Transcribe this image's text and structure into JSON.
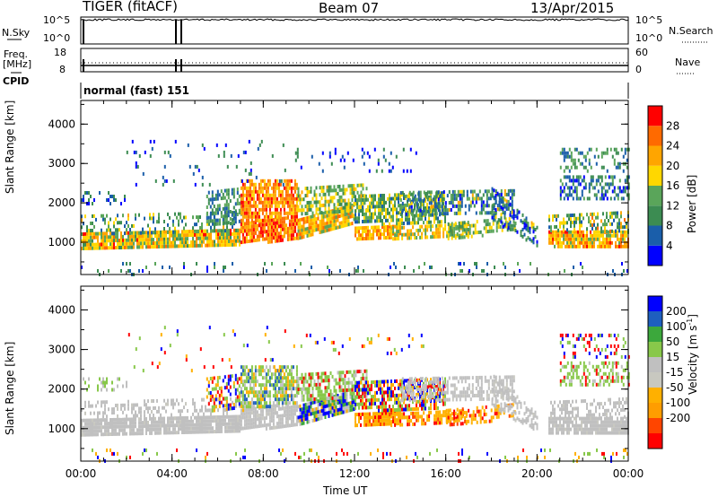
{
  "header": {
    "title": "TIGER (fitACF)",
    "beam": "Beam 07",
    "date": "13/Apr/2015"
  },
  "top_panels": {
    "nsky_label": "N.Sky",
    "nsky_ticks": [
      "10^5",
      "10^0"
    ],
    "nsearch_label": "N.Search",
    "nsearch_ticks": [
      "10^5",
      "10^0"
    ],
    "freq_label": "Freq.",
    "freq_unit": "[MHz]",
    "freq_ticks": [
      "18",
      "8"
    ],
    "nave_label": "Nave",
    "nave_ticks": [
      "60",
      "0"
    ],
    "cpid_label": "CPID",
    "cpid_text": "normal (fast) 151"
  },
  "colors": {
    "power": [
      "#0000ff",
      "#1a5eaa",
      "#3c8c52",
      "#5aa55a",
      "#ffd700",
      "#ffa500",
      "#ff6a00",
      "#ff0000"
    ],
    "velocity": [
      "#ff0000",
      "#ff4500",
      "#ff9d00",
      "#ffb000",
      "#c8c8c0",
      "#c0c0c0",
      "#88c84a",
      "#3ca83c",
      "#1e5fbf",
      "#0000ff"
    ]
  },
  "chart_data": [
    {
      "type": "heatmap",
      "title": "Power",
      "xlabel": "Time UT",
      "ylabel": "Slant Range [km]",
      "x_ticks": [
        "00:00",
        "04:00",
        "08:00",
        "12:00",
        "16:00",
        "20:00",
        "00:00"
      ],
      "y_ticks": [
        "1000",
        "2000",
        "3000",
        "4000"
      ],
      "ylim": [
        180,
        4600
      ],
      "colorbar_label": "Power [dB]",
      "colorbar_ticks": [
        "4",
        "8",
        "12",
        "16",
        "20",
        "24",
        "28"
      ],
      "colorbar_range": [
        0,
        32
      ]
    },
    {
      "type": "heatmap",
      "title": "Velocity",
      "xlabel": "Time UT",
      "ylabel": "Slant Range [km]",
      "x_ticks": [
        "00:00",
        "04:00",
        "08:00",
        "12:00",
        "16:00",
        "20:00",
        "00:00"
      ],
      "y_ticks": [
        "1000",
        "2000",
        "3000",
        "4000"
      ],
      "ylim": [
        180,
        4600
      ],
      "colorbar_label": "Velocity [m s^-1]",
      "colorbar_ticks": [
        "200",
        "100",
        "50",
        "15",
        "-15",
        "-50",
        "-100",
        "-200"
      ]
    }
  ]
}
